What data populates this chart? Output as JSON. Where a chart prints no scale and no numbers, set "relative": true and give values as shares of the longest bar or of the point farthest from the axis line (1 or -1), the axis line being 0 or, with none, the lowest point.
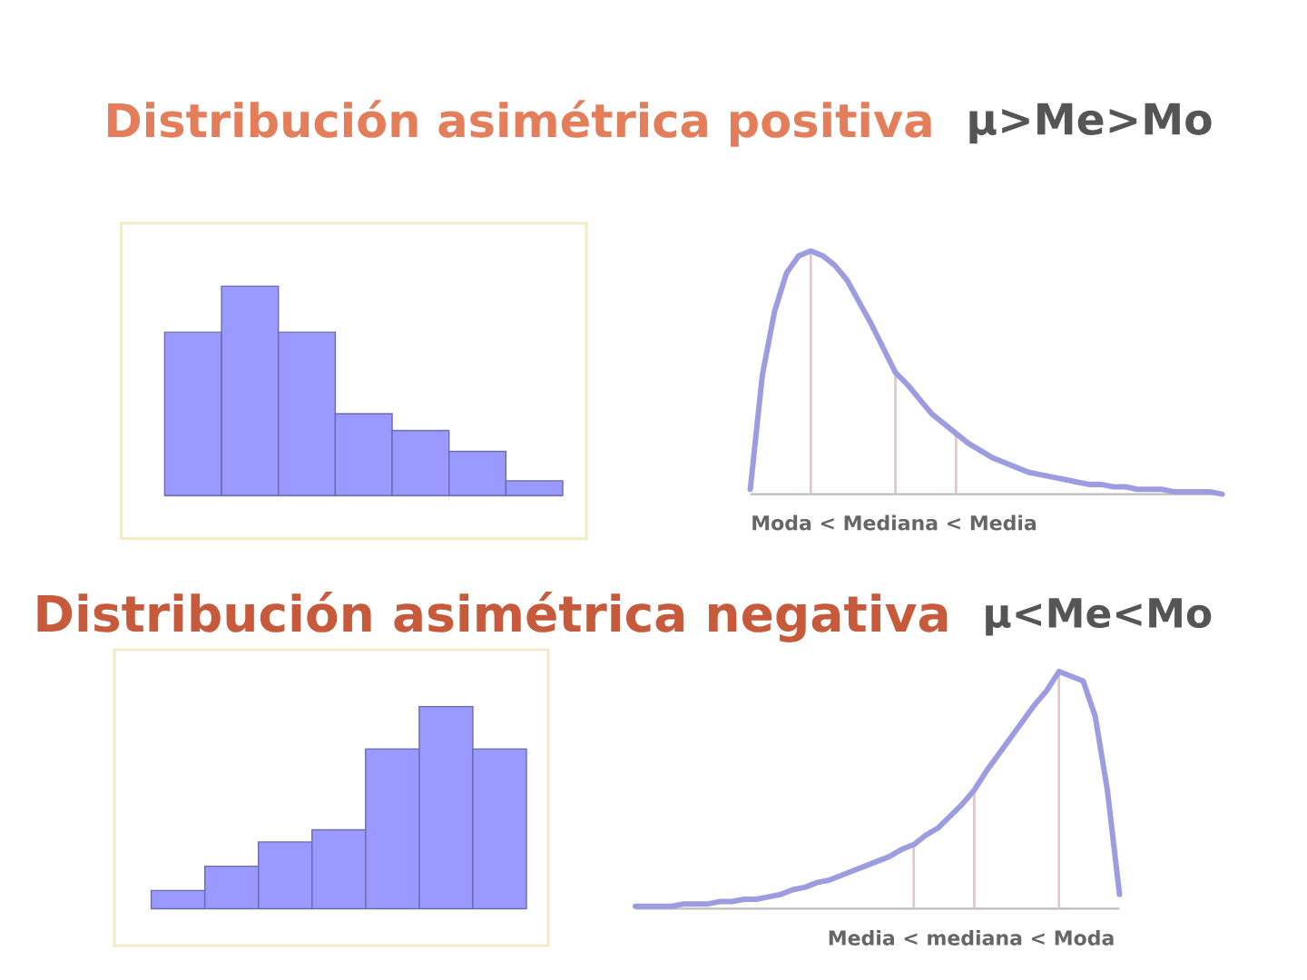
{
  "chart_data": [
    {
      "type": "bar",
      "title": "Distribución asimétrica positiva",
      "categories": [
        null,
        null,
        null,
        null,
        null,
        null,
        null
      ],
      "values": [
        0.78,
        1,
        0.78,
        0.39,
        0.31,
        0.21,
        0.07
      ],
      "color": "#9999ff",
      "relative": true
    },
    {
      "type": "line",
      "title": "μ>Me>Mo",
      "categories": [
        null,
        null,
        null,
        null,
        null,
        null,
        null,
        null,
        null,
        null,
        null,
        null,
        null,
        null,
        null,
        null,
        null,
        null,
        null,
        null,
        null,
        null,
        null,
        null,
        null,
        null,
        null,
        null,
        null,
        null,
        null,
        null,
        null,
        null,
        null,
        null,
        null,
        null,
        null,
        null
      ],
      "series": [
        {
          "color": "#9c9ce0",
          "values": [
            0.02,
            0.49,
            0.75,
            0.91,
            0.98,
            1,
            0.98,
            0.94,
            0.88,
            0.79,
            0.7,
            0.6,
            0.5,
            0.45,
            0.39,
            0.33,
            0.29,
            0.25,
            0.21,
            0.18,
            0.15,
            0.13,
            0.11,
            0.09,
            0.08,
            0.07,
            0.06,
            0.05,
            0.04,
            0.04,
            0.03,
            0.03,
            0.02,
            0.02,
            0.02,
            0.01,
            0.01,
            0.01,
            0.01,
            0
          ]
        }
      ],
      "relative": true,
      "annotations": [
        "Moda < Mediana < Media"
      ]
    },
    {
      "type": "bar",
      "title": "Distribución asimétrica negativa",
      "categories": [
        null,
        null,
        null,
        null,
        null,
        null,
        null
      ],
      "values": [
        0.09,
        0.21,
        0.33,
        0.39,
        0.79,
        1,
        0.79
      ],
      "color": "#9999ff",
      "relative": true
    },
    {
      "type": "line",
      "title": "μ<Me<Mo",
      "categories": [
        null,
        null,
        null,
        null,
        null,
        null,
        null,
        null,
        null,
        null,
        null,
        null,
        null,
        null,
        null,
        null,
        null,
        null,
        null,
        null,
        null,
        null,
        null,
        null,
        null,
        null,
        null,
        null,
        null,
        null,
        null,
        null,
        null,
        null,
        null,
        null,
        null,
        null,
        null,
        null,
        null
      ],
      "series": [
        {
          "color": "#9c9ce0",
          "values": [
            0.01,
            0.01,
            0.01,
            0.01,
            0.02,
            0.02,
            0.02,
            0.03,
            0.03,
            0.04,
            0.04,
            0.05,
            0.06,
            0.08,
            0.09,
            0.11,
            0.12,
            0.14,
            0.16,
            0.18,
            0.2,
            0.22,
            0.25,
            0.27,
            0.31,
            0.34,
            0.39,
            0.44,
            0.5,
            0.58,
            0.65,
            0.72,
            0.79,
            0.86,
            0.92,
            1,
            0.98,
            0.96,
            0.81,
            0.5,
            0.06
          ]
        }
      ],
      "relative": true,
      "annotations": [
        "Media < mediana < Moda"
      ]
    }
  ]
}
